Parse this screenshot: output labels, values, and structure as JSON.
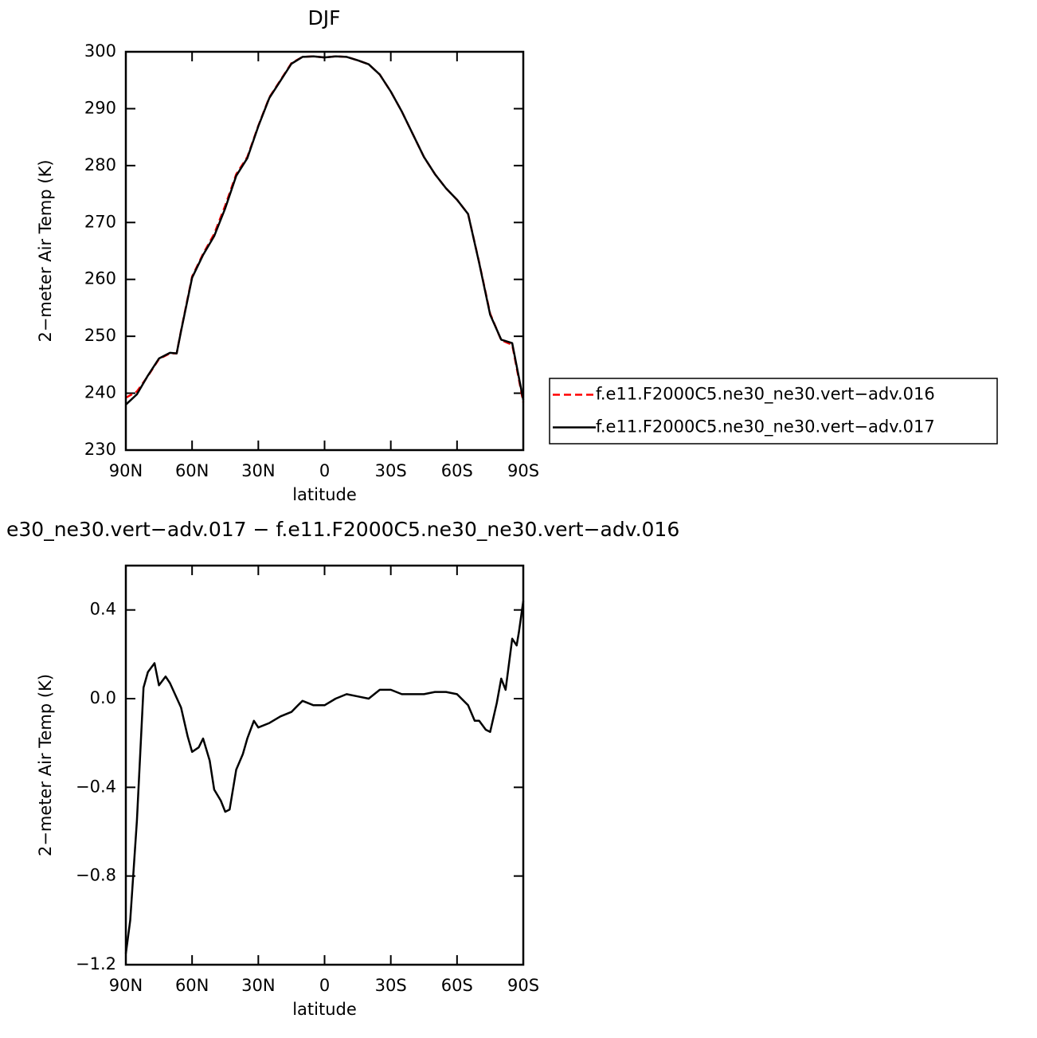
{
  "chart_data": [
    {
      "type": "line",
      "title": "DJF",
      "x_label": "latitude",
      "y_label": "2−meter Air Temp (K)",
      "x": [
        90,
        85,
        80,
        75,
        70,
        67,
        65,
        60,
        55,
        50,
        45,
        40,
        35,
        30,
        25,
        20,
        15,
        10,
        5,
        0,
        -5,
        -10,
        -15,
        -20,
        -25,
        -30,
        -35,
        -40,
        -45,
        -50,
        -55,
        -60,
        -65,
        -70,
        -75,
        -80,
        -85,
        -90
      ],
      "xlim": [
        90,
        -90
      ],
      "xticks": [
        {
          "value": 90,
          "label": "90N"
        },
        {
          "value": 60,
          "label": "60N"
        },
        {
          "value": 30,
          "label": "30N"
        },
        0,
        {
          "value": -30,
          "label": "30S"
        },
        {
          "value": -60,
          "label": "60S"
        },
        {
          "value": -90,
          "label": "90S"
        }
      ],
      "ylim": [
        230,
        300
      ],
      "yticks": [
        230,
        240,
        250,
        260,
        270,
        280,
        290,
        300
      ],
      "legend": "right",
      "series": [
        {
          "name": "f.e11.F2000C5.ne30_ne30.vert−adv.016",
          "color": "#ff0000",
          "style": "dashed",
          "values": [
            239.2,
            240.3,
            243,
            246,
            247,
            247,
            251,
            260.5,
            264.5,
            268,
            273,
            278.5,
            281.5,
            287,
            292,
            295,
            298,
            299.1,
            299.2,
            299,
            299.2,
            299.1,
            298.5,
            297.8,
            296,
            293,
            289.5,
            285.5,
            281.5,
            278.5,
            276,
            274,
            271.5,
            263,
            254,
            249.3,
            248.5,
            238.4
          ]
        },
        {
          "name": "f.e11.F2000C5.ne30_ne30.vert−adv.017",
          "color": "#000000",
          "style": "solid",
          "values": [
            238,
            239.8,
            243.1,
            246.1,
            247.1,
            247,
            250.9,
            260.3,
            264.3,
            267.6,
            272.5,
            278.2,
            281.3,
            286.9,
            291.9,
            294.9,
            297.9,
            299.1,
            299.2,
            299,
            299.2,
            299.1,
            298.5,
            297.8,
            296,
            293,
            289.5,
            285.5,
            281.5,
            278.5,
            276,
            274,
            271.5,
            262.9,
            253.8,
            249.4,
            248.8,
            238.8
          ]
        }
      ]
    },
    {
      "type": "line",
      "title": "e30_ne30.vert−adv.017 − f.e11.F2000C5.ne30_ne30.vert−adv.016",
      "x_label": "latitude",
      "y_label": "2−meter Air Temp (K)",
      "x": [
        90,
        88,
        85,
        82,
        80,
        77,
        75,
        72,
        70,
        65,
        62,
        60,
        57,
        55,
        52,
        50,
        47,
        45,
        43,
        40,
        37,
        35,
        32,
        30,
        25,
        20,
        15,
        12,
        10,
        5,
        0,
        -5,
        -10,
        -15,
        -20,
        -25,
        -30,
        -35,
        -40,
        -45,
        -50,
        -55,
        -60,
        -65,
        -68,
        -70,
        -73,
        -75,
        -78,
        -80,
        -82,
        -85,
        -87,
        -88,
        -90
      ],
      "xlim": [
        90,
        -90
      ],
      "xticks": [
        {
          "value": 90,
          "label": "90N"
        },
        {
          "value": 60,
          "label": "60N"
        },
        {
          "value": 30,
          "label": "30N"
        },
        0,
        {
          "value": -30,
          "label": "30S"
        },
        {
          "value": -60,
          "label": "60S"
        },
        {
          "value": -90,
          "label": "90S"
        }
      ],
      "ylim": [
        -1.2,
        0.6
      ],
      "yticks": [
        {
          "value": -1.2,
          "label": "−1.2"
        },
        {
          "value": -0.8,
          "label": "−0.8"
        },
        {
          "value": -0.4,
          "label": "−0.4"
        },
        {
          "value": 0,
          "label": "0.0"
        },
        0.4
      ],
      "series": [
        {
          "color": "#000000",
          "style": "solid",
          "values": [
            -1.15,
            -1.0,
            -0.55,
            0.05,
            0.12,
            0.16,
            0.06,
            0.1,
            0.07,
            -0.04,
            -0.17,
            -0.24,
            -0.22,
            -0.18,
            -0.28,
            -0.41,
            -0.46,
            -0.51,
            -0.5,
            -0.32,
            -0.25,
            -0.18,
            -0.1,
            -0.13,
            -0.11,
            -0.08,
            -0.06,
            -0.03,
            -0.01,
            -0.03,
            -0.03,
            0.0,
            0.02,
            0.01,
            0.0,
            0.04,
            0.04,
            0.02,
            0.02,
            0.02,
            0.03,
            0.03,
            0.02,
            -0.03,
            -0.1,
            -0.1,
            -0.14,
            -0.15,
            -0.02,
            0.09,
            0.04,
            0.27,
            0.24,
            0.3,
            0.44
          ]
        }
      ]
    }
  ]
}
